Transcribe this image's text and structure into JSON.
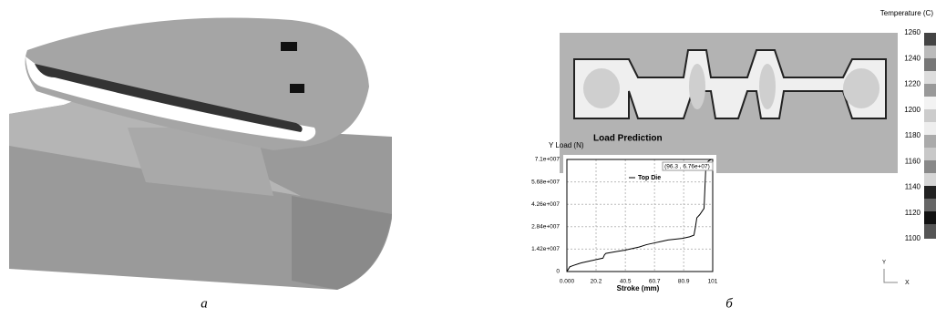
{
  "panel_labels": [
    "а",
    "б"
  ],
  "colorbar": {
    "title": "Temperature (C)",
    "ticks": [
      1260,
      1240,
      1220,
      1200,
      1180,
      1160,
      1140,
      1120,
      1100
    ],
    "range": [
      1100,
      1260
    ]
  },
  "axis_indicator": {
    "y": "Y",
    "x": "X"
  },
  "chart_data": {
    "type": "line",
    "title": "Load Prediction",
    "y_label": "Y Load (N)",
    "x_label": "Stroke (mm)",
    "annotation": "(96.3 , 6.76e+07)",
    "xlim": [
      0,
      101
    ],
    "ylim": [
      0,
      71000000
    ],
    "xticks": [
      {
        "value": 0,
        "label": "0.000"
      },
      20.2,
      40.5,
      60.7,
      80.9,
      101
    ],
    "yticks": [
      0,
      {
        "value": 14200000,
        "label": "1.42e+007"
      },
      {
        "value": 28400000,
        "label": "2.84e+007"
      },
      {
        "value": 42600000,
        "label": "4.26e+007"
      },
      {
        "value": 56800000,
        "label": "5.68e+007"
      },
      {
        "value": 71000000,
        "label": "7.1e+007"
      }
    ],
    "grid": true,
    "x": [
      0,
      2,
      5,
      10,
      15,
      20,
      25,
      26,
      27,
      30,
      35,
      40,
      45,
      50,
      55,
      60,
      65,
      70,
      75,
      80,
      85,
      88,
      89,
      90,
      92,
      95,
      96.3,
      98,
      100
    ],
    "series": [
      {
        "name": "Top Die",
        "color": "#000000",
        "values": [
          0,
          3000000,
          4000000,
          5500000,
          6500000,
          7500000,
          8500000,
          10500000,
          11500000,
          12000000,
          12800000,
          13500000,
          14500000,
          15500000,
          17000000,
          18000000,
          19000000,
          20000000,
          20500000,
          21000000,
          22000000,
          23000000,
          28000000,
          34000000,
          36000000,
          40000000,
          67600000,
          70000000,
          71000000
        ]
      }
    ]
  }
}
